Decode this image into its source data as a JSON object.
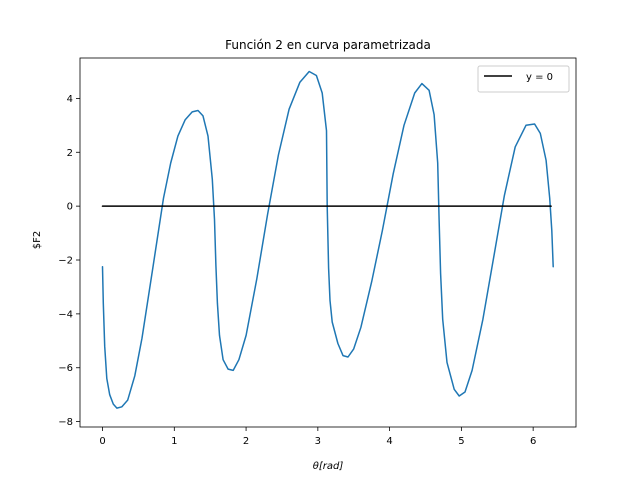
{
  "chart_data": {
    "type": "line",
    "title": "Función 2 en curva parametrizada",
    "xlabel": "θ[rad]",
    "ylabel": "$F2",
    "xlim": [
      -0.314,
      6.597
    ],
    "ylim": [
      -8.2,
      5.5
    ],
    "xticks": [
      0,
      1,
      2,
      3,
      4,
      5,
      6
    ],
    "yticks": [
      -8,
      -6,
      -4,
      -2,
      0,
      2,
      4
    ],
    "xtick_labels": [
      "0",
      "1",
      "2",
      "3",
      "4",
      "5",
      "6"
    ],
    "ytick_labels": [
      "−8",
      "−6",
      "−4",
      "−2",
      "0",
      "2",
      "4"
    ],
    "grid": false,
    "legend": {
      "position": "top-right",
      "entries": [
        "y = 0"
      ]
    },
    "series": [
      {
        "color": "#1f77b4",
        "x": [
          0,
          0.01,
          0.03,
          0.06,
          0.1,
          0.15,
          0.2,
          0.27,
          0.35,
          0.45,
          0.55,
          0.7,
          0.85,
          0.95,
          1.05,
          1.15,
          1.25,
          1.33,
          1.4,
          1.47,
          1.53,
          1.56,
          1.58,
          1.6,
          1.63,
          1.68,
          1.75,
          1.82,
          1.9,
          2.0,
          2.15,
          2.3,
          2.45,
          2.6,
          2.75,
          2.88,
          2.98,
          3.06,
          3.12,
          3.13,
          3.15,
          3.17,
          3.2,
          3.28,
          3.35,
          3.42,
          3.5,
          3.6,
          3.75,
          3.9,
          4.05,
          4.2,
          4.35,
          4.45,
          4.55,
          4.62,
          4.67,
          4.69,
          4.71,
          4.74,
          4.8,
          4.9,
          4.97,
          5.05,
          5.15,
          5.3,
          5.45,
          5.6,
          5.75,
          5.9,
          6.02,
          6.1,
          6.18,
          6.23,
          6.26,
          6.28
        ],
        "y": [
          -2.25,
          -3.6,
          -5.2,
          -6.4,
          -7.0,
          -7.35,
          -7.5,
          -7.45,
          -7.2,
          -6.3,
          -4.9,
          -2.3,
          0.3,
          1.6,
          2.6,
          3.2,
          3.5,
          3.55,
          3.35,
          2.6,
          1.0,
          -0.5,
          -2.2,
          -3.6,
          -4.8,
          -5.7,
          -6.05,
          -6.1,
          -5.7,
          -4.8,
          -2.7,
          -0.3,
          1.9,
          3.6,
          4.6,
          5.0,
          4.85,
          4.2,
          2.8,
          0,
          -2.3,
          -3.5,
          -4.3,
          -5.1,
          -5.55,
          -5.6,
          -5.3,
          -4.5,
          -2.8,
          -0.9,
          1.2,
          3.0,
          4.2,
          4.55,
          4.3,
          3.4,
          1.6,
          -0.5,
          -2.5,
          -4.2,
          -5.8,
          -6.8,
          -7.05,
          -6.9,
          -6.1,
          -4.2,
          -1.9,
          0.4,
          2.2,
          3.0,
          3.05,
          2.7,
          1.7,
          0.3,
          -0.9,
          -2.25
        ]
      },
      {
        "name": "y = 0",
        "color": "#000000",
        "x": [
          0,
          6.25
        ],
        "y": [
          0,
          0
        ]
      }
    ]
  }
}
